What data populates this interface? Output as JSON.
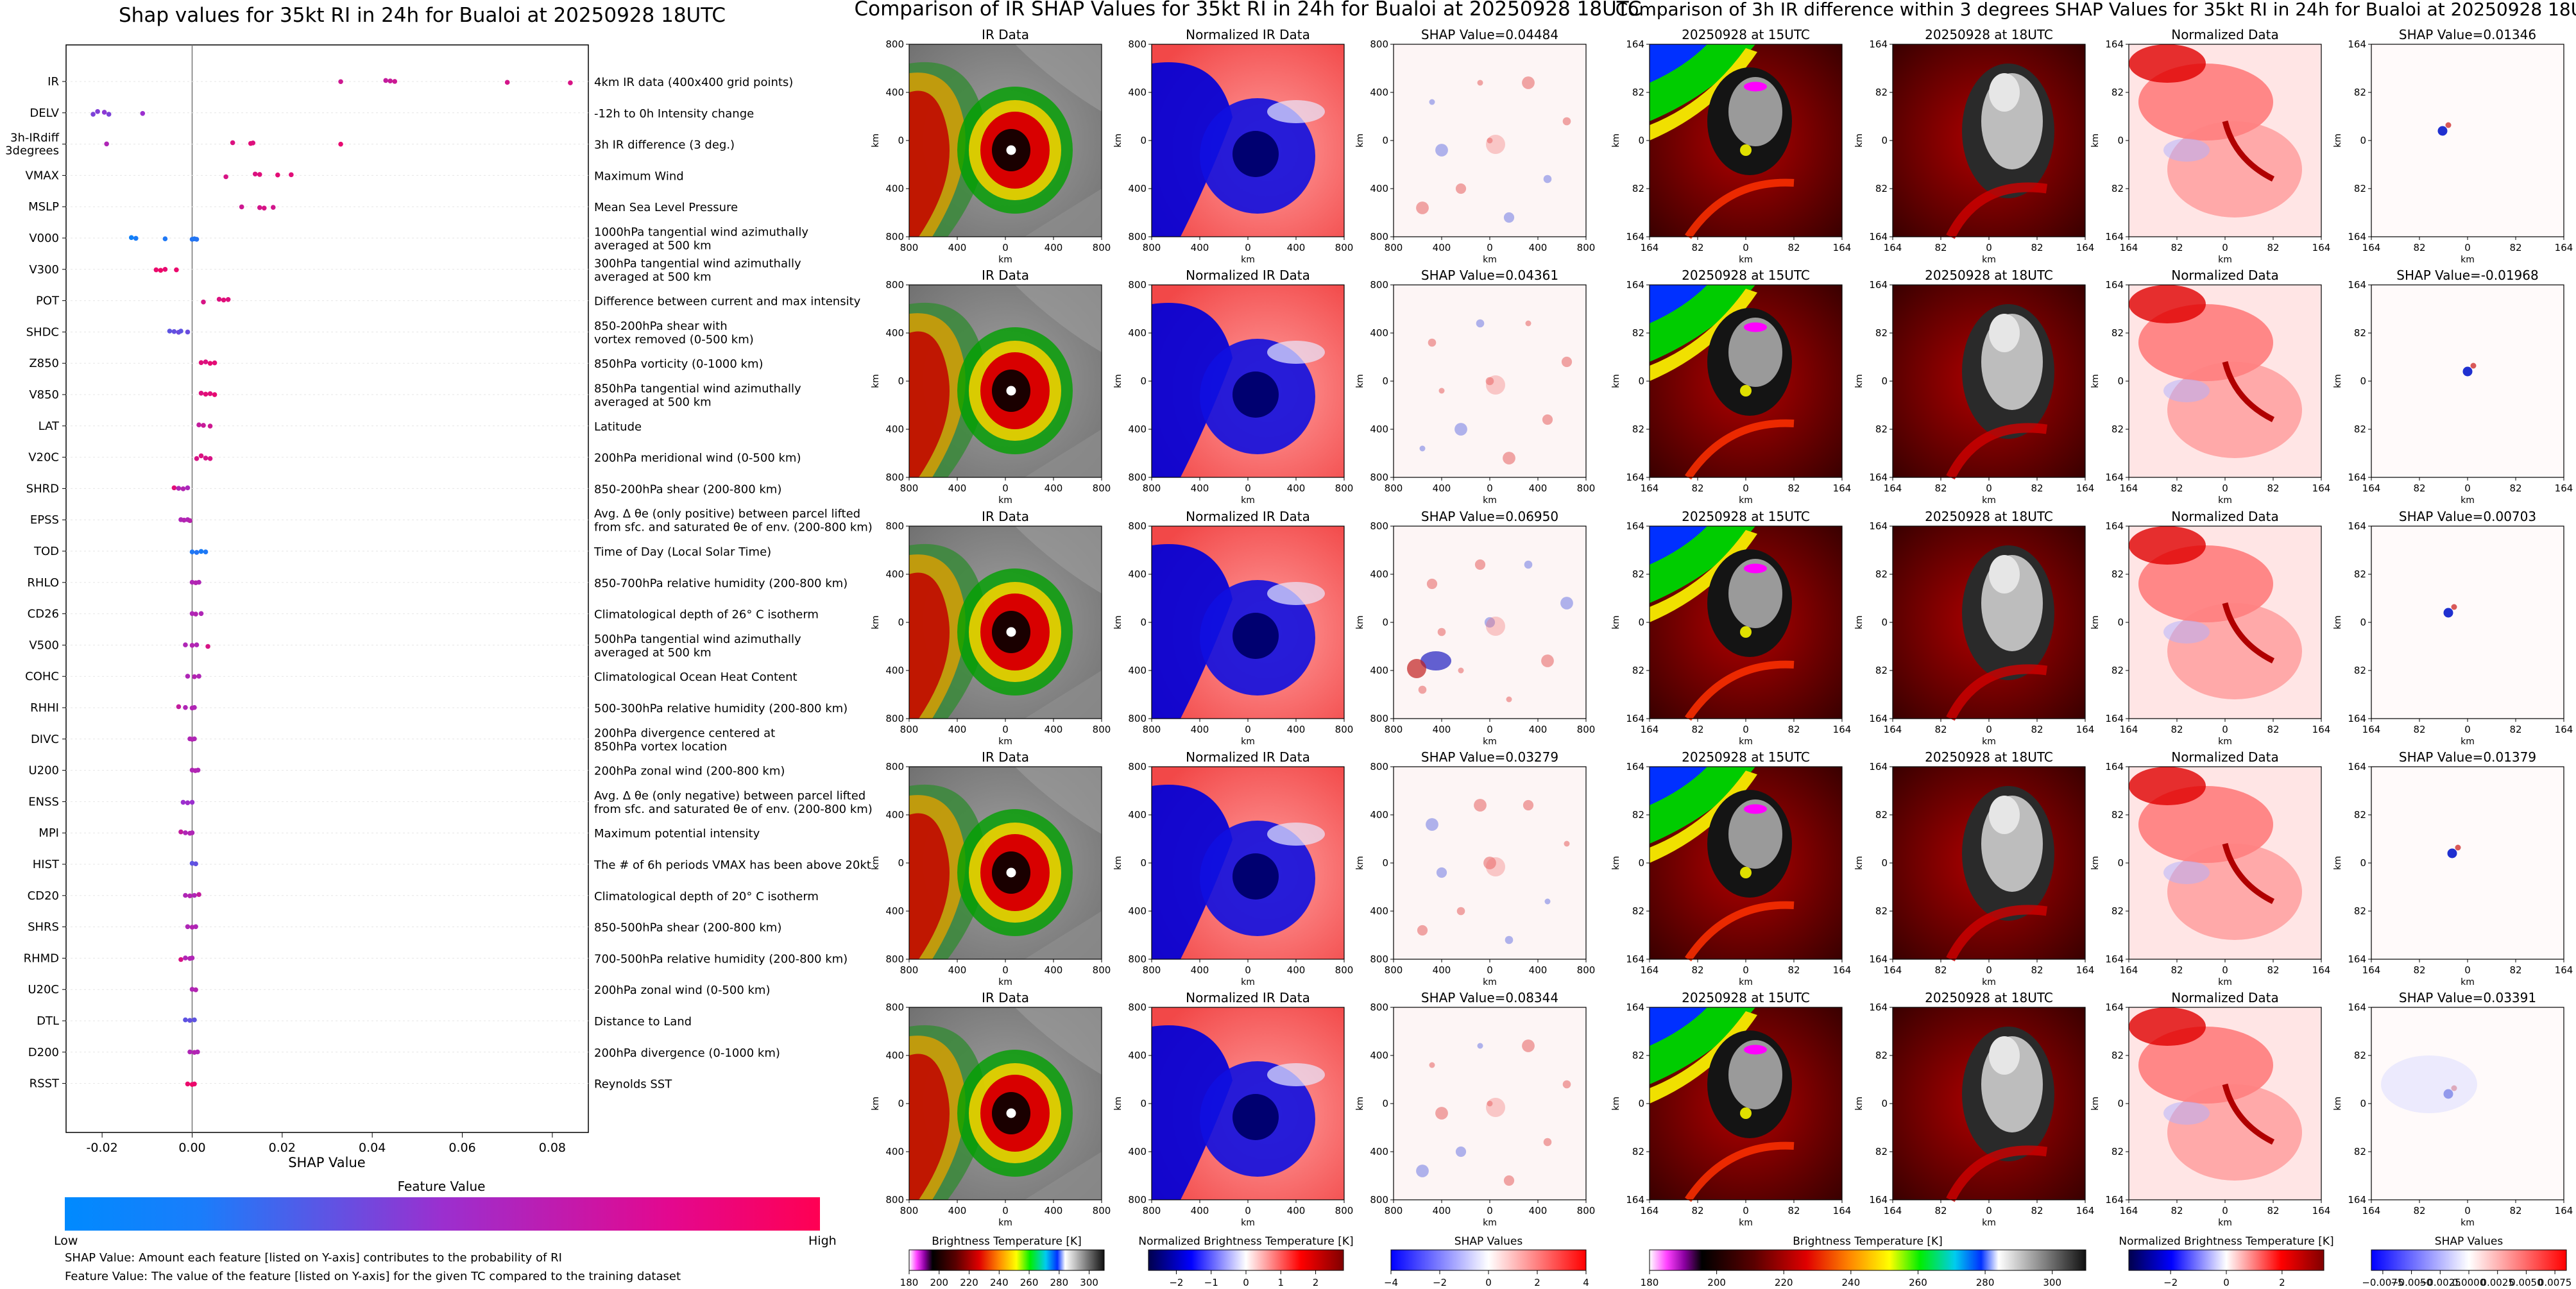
{
  "colors": {
    "feature_low": "#008afe",
    "feature_mid": "#9b2fcf",
    "feature_high": "#ff0053",
    "shap_pos": "#d00000",
    "shap_neg": "#0000d0"
  },
  "chart_data": [
    {
      "type": "scatter",
      "name": "beeswarm",
      "title": "Shap values for 35kt RI in 24h for Bualoi at 20250928 18UTC",
      "xlabel": "SHAP Value",
      "xlim": [
        -0.028,
        0.088
      ],
      "xticks": [
        "-0.02",
        "0.00",
        "0.02",
        "0.04",
        "0.06",
        "0.08"
      ],
      "xtick_values": [
        -0.02,
        0.0,
        0.02,
        0.04,
        0.06,
        0.08
      ],
      "colorbar": {
        "title": "Feature Value",
        "low": "Low",
        "high": "High"
      },
      "notes": [
        "SHAP Value: Amount each feature [listed on Y-axis] contributes to the probability of RI",
        "Feature Value: The value of the feature [listed on Y-axis] for the given TC compared to the training dataset"
      ],
      "features": [
        {
          "code": "IR",
          "desc": [
            "4km IR data (400x400 grid points)"
          ],
          "points": [
            [
              0.033,
              0.75
            ],
            [
              0.043,
              0.7
            ],
            [
              0.044,
              0.72
            ],
            [
              0.045,
              0.74
            ],
            [
              0.07,
              0.78
            ],
            [
              0.084,
              0.8
            ]
          ]
        },
        {
          "code": "DELV",
          "desc": [
            "-12h to 0h Intensity change"
          ],
          "points": [
            [
              -0.022,
              0.4
            ],
            [
              -0.021,
              0.42
            ],
            [
              -0.0195,
              0.45
            ],
            [
              -0.0185,
              0.4
            ],
            [
              -0.011,
              0.5
            ]
          ]
        },
        {
          "code": "3h-IRdiff\n3degrees",
          "desc": [
            "3h IR difference (3 deg.)"
          ],
          "points": [
            [
              -0.019,
              0.6
            ],
            [
              0.009,
              0.82
            ],
            [
              0.013,
              0.85
            ],
            [
              0.0135,
              0.83
            ],
            [
              0.033,
              0.88
            ]
          ]
        },
        {
          "code": "VMAX",
          "desc": [
            "Maximum Wind"
          ],
          "points": [
            [
              0.0075,
              0.8
            ],
            [
              0.014,
              0.82
            ],
            [
              0.015,
              0.84
            ],
            [
              0.019,
              0.86
            ],
            [
              0.022,
              0.85
            ]
          ]
        },
        {
          "code": "MSLP",
          "desc": [
            "Mean Sea Level Pressure"
          ],
          "points": [
            [
              0.011,
              0.75
            ],
            [
              0.015,
              0.78
            ],
            [
              0.016,
              0.8
            ],
            [
              0.018,
              0.77
            ]
          ]
        },
        {
          "code": "V000",
          "desc": [
            "1000hPa tangential wind azimuthally",
            "averaged at 500 km"
          ],
          "points": [
            [
              -0.0135,
              0.05
            ],
            [
              -0.0125,
              0.08
            ],
            [
              -0.006,
              0.1
            ],
            [
              0.0,
              0.12
            ],
            [
              0.0005,
              0.1
            ],
            [
              0.001,
              0.12
            ]
          ]
        },
        {
          "code": "V300",
          "desc": [
            "300hPa tangential wind azimuthally",
            "averaged at 500 km"
          ],
          "points": [
            [
              -0.008,
              0.9
            ],
            [
              -0.007,
              0.92
            ],
            [
              -0.006,
              0.88
            ],
            [
              -0.0035,
              0.9
            ]
          ]
        },
        {
          "code": "POT",
          "desc": [
            "Difference between current and max intensity"
          ],
          "points": [
            [
              0.0025,
              0.8
            ],
            [
              0.006,
              0.82
            ],
            [
              0.007,
              0.85
            ],
            [
              0.008,
              0.83
            ]
          ]
        },
        {
          "code": "SHDC",
          "desc": [
            "850-200hPa shear with",
            "vortex removed (0-500 km)"
          ],
          "points": [
            [
              -0.005,
              0.3
            ],
            [
              -0.004,
              0.32
            ],
            [
              -0.003,
              0.35
            ],
            [
              -0.0025,
              0.3
            ],
            [
              -0.001,
              0.34
            ]
          ]
        },
        {
          "code": "Z850",
          "desc": [
            "850hPa vorticity (0-1000 km)"
          ],
          "points": [
            [
              0.002,
              0.85
            ],
            [
              0.003,
              0.82
            ],
            [
              0.004,
              0.88
            ],
            [
              0.005,
              0.86
            ]
          ]
        },
        {
          "code": "V850",
          "desc": [
            "850hPa tangential wind azimuthally",
            "averaged at 500 km"
          ],
          "points": [
            [
              0.002,
              0.82
            ],
            [
              0.003,
              0.86
            ],
            [
              0.004,
              0.84
            ],
            [
              0.005,
              0.88
            ]
          ]
        },
        {
          "code": "LAT",
          "desc": [
            "Latitude"
          ],
          "points": [
            [
              0.0015,
              0.7
            ],
            [
              0.0025,
              0.72
            ],
            [
              0.004,
              0.75
            ]
          ]
        },
        {
          "code": "V20C",
          "desc": [
            "200hPa meridional wind (0-500 km)"
          ],
          "points": [
            [
              0.001,
              0.8
            ],
            [
              0.002,
              0.82
            ],
            [
              0.003,
              0.78
            ],
            [
              0.004,
              0.8
            ]
          ]
        },
        {
          "code": "SHRD",
          "desc": [
            "850-200hPa shear (200-800 km)"
          ],
          "points": [
            [
              -0.004,
              0.85
            ],
            [
              -0.003,
              0.6
            ],
            [
              -0.002,
              0.62
            ],
            [
              -0.001,
              0.58
            ]
          ]
        },
        {
          "code": "EPSS",
          "desc": [
            "Avg. Δ θe (only positive) between parcel lifted",
            "from sfc. and saturated θe of env. (200-800 km)"
          ],
          "points": [
            [
              -0.0025,
              0.6
            ],
            [
              -0.0018,
              0.62
            ],
            [
              -0.001,
              0.6
            ],
            [
              -0.0005,
              0.64
            ]
          ]
        },
        {
          "code": "TOD",
          "desc": [
            "Time of Day (Local Solar Time)"
          ],
          "points": [
            [
              0.0,
              0.1
            ],
            [
              0.001,
              0.12
            ],
            [
              0.002,
              0.08
            ],
            [
              0.003,
              0.1
            ]
          ]
        },
        {
          "code": "RHLO",
          "desc": [
            "850-700hPa relative humidity (200-800 km)"
          ],
          "points": [
            [
              0.0,
              0.6
            ],
            [
              0.0008,
              0.62
            ],
            [
              0.0015,
              0.6
            ]
          ]
        },
        {
          "code": "CD26",
          "desc": [
            "Climatological depth of 26° C isotherm"
          ],
          "points": [
            [
              0.0,
              0.6
            ],
            [
              0.0008,
              0.62
            ],
            [
              0.002,
              0.6
            ]
          ]
        },
        {
          "code": "V500",
          "desc": [
            "500hPa tangential wind azimuthally",
            "averaged at 500 km"
          ],
          "points": [
            [
              -0.0015,
              0.6
            ],
            [
              0.0,
              0.62
            ],
            [
              0.001,
              0.6
            ],
            [
              0.0035,
              0.8
            ]
          ]
        },
        {
          "code": "COHC",
          "desc": [
            "Climatological Ocean Heat Content"
          ],
          "points": [
            [
              -0.001,
              0.6
            ],
            [
              0.0005,
              0.62
            ],
            [
              0.0015,
              0.6
            ]
          ]
        },
        {
          "code": "RHHI",
          "desc": [
            "500-300hPa relative humidity (200-800 km)"
          ],
          "points": [
            [
              -0.003,
              0.7
            ],
            [
              -0.0015,
              0.6
            ],
            [
              0.0,
              0.62
            ],
            [
              0.0005,
              0.6
            ]
          ]
        },
        {
          "code": "DIVC",
          "desc": [
            "200hPa divergence centered at",
            "850hPa vortex location"
          ],
          "points": [
            [
              -0.0005,
              0.6
            ],
            [
              0.0,
              0.62
            ],
            [
              0.0005,
              0.6
            ]
          ]
        },
        {
          "code": "U200",
          "desc": [
            "200hPa zonal wind (200-800 km)"
          ],
          "points": [
            [
              0.0,
              0.6
            ],
            [
              0.0007,
              0.62
            ],
            [
              0.0013,
              0.6
            ]
          ]
        },
        {
          "code": "ENSS",
          "desc": [
            "Avg. Δ θe (only negative) between parcel lifted",
            "from sfc. and saturated θe of env. (200-800 km)"
          ],
          "points": [
            [
              -0.002,
              0.5
            ],
            [
              -0.001,
              0.52
            ],
            [
              0.0,
              0.5
            ]
          ]
        },
        {
          "code": "MPI",
          "desc": [
            "Maximum potential intensity"
          ],
          "points": [
            [
              -0.0025,
              0.7
            ],
            [
              -0.0015,
              0.6
            ],
            [
              -0.0005,
              0.62
            ],
            [
              0.0,
              0.6
            ]
          ]
        },
        {
          "code": "HIST",
          "desc": [
            "The # of 6h periods VMAX has been above 20kt"
          ],
          "points": [
            [
              0.0,
              0.3
            ],
            [
              0.0008,
              0.32
            ]
          ]
        },
        {
          "code": "CD20",
          "desc": [
            "Climatological depth of 20° C isotherm"
          ],
          "points": [
            [
              -0.0015,
              0.6
            ],
            [
              -0.0005,
              0.62
            ],
            [
              0.0005,
              0.6
            ],
            [
              0.0015,
              0.7
            ]
          ]
        },
        {
          "code": "SHRS",
          "desc": [
            "850-500hPa shear (200-800 km)"
          ],
          "points": [
            [
              -0.001,
              0.6
            ],
            [
              0.0,
              0.62
            ],
            [
              0.0008,
              0.6
            ]
          ]
        },
        {
          "code": "RHMD",
          "desc": [
            "700-500hPa relative humidity (200-800 km)"
          ],
          "points": [
            [
              -0.0025,
              0.8
            ],
            [
              -0.0015,
              0.6
            ],
            [
              -0.0005,
              0.62
            ],
            [
              0.0,
              0.6
            ]
          ]
        },
        {
          "code": "U20C",
          "desc": [
            "200hPa zonal wind (0-500 km)"
          ],
          "points": [
            [
              0.0,
              0.6
            ],
            [
              0.0008,
              0.62
            ]
          ]
        },
        {
          "code": "DTL",
          "desc": [
            "Distance to Land"
          ],
          "points": [
            [
              -0.0015,
              0.3
            ],
            [
              -0.0005,
              0.32
            ],
            [
              0.0005,
              0.3
            ]
          ]
        },
        {
          "code": "D200",
          "desc": [
            "200hPa divergence (0-1000 km)"
          ],
          "points": [
            [
              -0.0005,
              0.6
            ],
            [
              0.0005,
              0.62
            ],
            [
              0.0012,
              0.6
            ]
          ]
        },
        {
          "code": "RSST",
          "desc": [
            "Reynolds SST"
          ],
          "points": [
            [
              -0.001,
              0.9
            ],
            [
              0.0,
              0.92
            ],
            [
              0.0005,
              0.9
            ]
          ]
        }
      ]
    },
    {
      "type": "heatmap",
      "name": "ir-shap-panel-grid",
      "title": "Comparison of IR SHAP Values for 35kt RI in 24h for Bualoi at 20250928 18UTC",
      "column_titles": [
        "IR Data",
        "Normalized IR Data"
      ],
      "shap_values": [
        "0.04484",
        "0.04361",
        "0.06950",
        "0.03279",
        "0.08344"
      ],
      "shap_prefix": "SHAP Value=",
      "axis_ticks": [
        "800",
        "400",
        "0",
        "400",
        "800"
      ],
      "axis_label": "km",
      "colorbars": [
        {
          "label": "Brightness Temperature [K]",
          "ticks": [
            "180",
            "200",
            "220",
            "240",
            "260",
            "280",
            "300"
          ],
          "range": [
            180,
            310
          ]
        },
        {
          "label": "Normalized Brightness Temperature [K]",
          "ticks": [
            "−2",
            "−1",
            "0",
            "1",
            "2"
          ],
          "range": [
            -2.8,
            2.8
          ]
        },
        {
          "label": "SHAP Values",
          "ticks": [
            "−4",
            "−2",
            "0",
            "2",
            "4"
          ],
          "range": [
            -4,
            4
          ],
          "exponent": "1e−5"
        }
      ]
    },
    {
      "type": "heatmap",
      "name": "ir-diff-shap-panel-grid",
      "title": "Comparison of 3h IR difference within 3 degrees SHAP Values for 35kt RI in 24h for Bualoi at 20250928 18UTC",
      "column_titles": [
        "20250928 at 15UTC",
        "20250928 at 18UTC",
        "Normalized Data"
      ],
      "shap_values": [
        "0.01346",
        "-0.01968",
        "0.00703",
        "0.01379",
        "0.03391"
      ],
      "shap_prefix": "SHAP Value=",
      "axis_ticks": [
        "164",
        "82",
        "0",
        "82",
        "164"
      ],
      "axis_label": "km",
      "colorbars": [
        {
          "label": "Brightness Temperature [K]",
          "ticks": [
            "180",
            "200",
            "220",
            "240",
            "260",
            "280",
            "300"
          ],
          "range": [
            180,
            310
          ]
        },
        {
          "label": "Normalized Brightness Temperature [K]",
          "ticks": [
            "−2",
            "0",
            "2"
          ],
          "range": [
            -3.5,
            3.5
          ]
        },
        {
          "label": "SHAP Values",
          "ticks": [
            "−0.0075",
            "−0.0050",
            "−0.0025",
            "0.0000",
            "0.0025",
            "0.0050",
            "0.0075"
          ],
          "range": [
            -0.0085,
            0.0085
          ]
        }
      ]
    }
  ]
}
